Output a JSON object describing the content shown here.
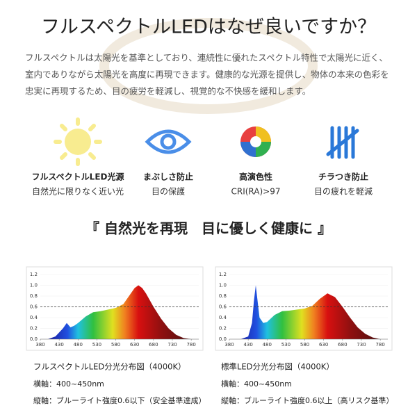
{
  "header": {
    "title": "フルスペクトルLEDはなぜ良いですか？"
  },
  "intro": [
    "フルスペクトルは太陽光を基準としており、連続性に優れたスペクトル特性で太陽光に近く、",
    "室内でありながら太陽光を高度に再現できます。健康的な光源を提供し、物体の本来の色彩を",
    "忠実に再現するため、目の疲労を軽減し、視覚的な不快感を緩和します。"
  ],
  "features": [
    {
      "title": "フルスペクトルLED光源",
      "subtitle": "自然光に限りなく近い光"
    },
    {
      "title": "まぶしさ防止",
      "subtitle": "目の保護"
    },
    {
      "title": "高演色性",
      "subtitle": "CRI(RA)>97"
    },
    {
      "title": "チラつき防止",
      "subtitle": "目の疲れを軽減"
    }
  ],
  "slogan": "『 自然光を再現　目に優しく健康に 』",
  "charts": [
    {
      "type": "area",
      "xlim": [
        380,
        800
      ],
      "ylim": [
        0,
        1.2
      ],
      "xticks": [
        380,
        430,
        480,
        530,
        580,
        630,
        680,
        730,
        780
      ],
      "yticks": [
        {
          "value": 0,
          "label": "0.0"
        },
        0.2,
        0.4,
        0.6,
        0.8,
        {
          "value": 1,
          "label": "1.0"
        },
        1.2
      ],
      "reference": 0.6,
      "x": [
        400,
        420,
        440,
        450,
        460,
        470,
        480,
        500,
        520,
        540,
        560,
        580,
        600,
        620,
        630,
        640,
        650,
        660,
        680,
        700,
        720,
        740,
        760,
        780
      ],
      "values": [
        0,
        0.05,
        0.2,
        0.3,
        0.22,
        0.25,
        0.3,
        0.42,
        0.5,
        0.52,
        0.55,
        0.58,
        0.65,
        0.85,
        0.95,
        1.0,
        0.95,
        0.85,
        0.6,
        0.38,
        0.2,
        0.08,
        0.02,
        0
      ],
      "caption": "フルスペクトルLED分光分布図（4000K）",
      "notes": [
        "横軸：400~450nm",
        "縦軸：ブルーライト強度0.6以下（安全基準達成）"
      ]
    },
    {
      "type": "area",
      "xlim": [
        380,
        800
      ],
      "ylim": [
        0,
        1.2
      ],
      "xticks": [
        380,
        430,
        480,
        530,
        580,
        630,
        680,
        730,
        780
      ],
      "yticks": [
        {
          "value": 0,
          "label": "0.0"
        },
        0.2,
        0.4,
        0.6,
        0.8,
        {
          "value": 1,
          "label": "1.0"
        },
        1.2
      ],
      "reference": 0.6,
      "x": [
        410,
        430,
        440,
        445,
        450,
        455,
        460,
        470,
        480,
        500,
        520,
        540,
        560,
        580,
        600,
        620,
        640,
        660,
        680,
        700,
        720,
        740,
        760,
        780
      ],
      "values": [
        0,
        0.05,
        0.3,
        0.7,
        1.0,
        0.7,
        0.4,
        0.3,
        0.32,
        0.45,
        0.52,
        0.53,
        0.55,
        0.57,
        0.62,
        0.75,
        0.85,
        0.78,
        0.6,
        0.4,
        0.22,
        0.1,
        0.03,
        0
      ],
      "caption": "標準LED分光分布図（4000K）",
      "notes": [
        "横軸：400~450nm",
        "縦軸：ブルーライト強度0.6以上（高リスク基準）"
      ]
    }
  ]
}
